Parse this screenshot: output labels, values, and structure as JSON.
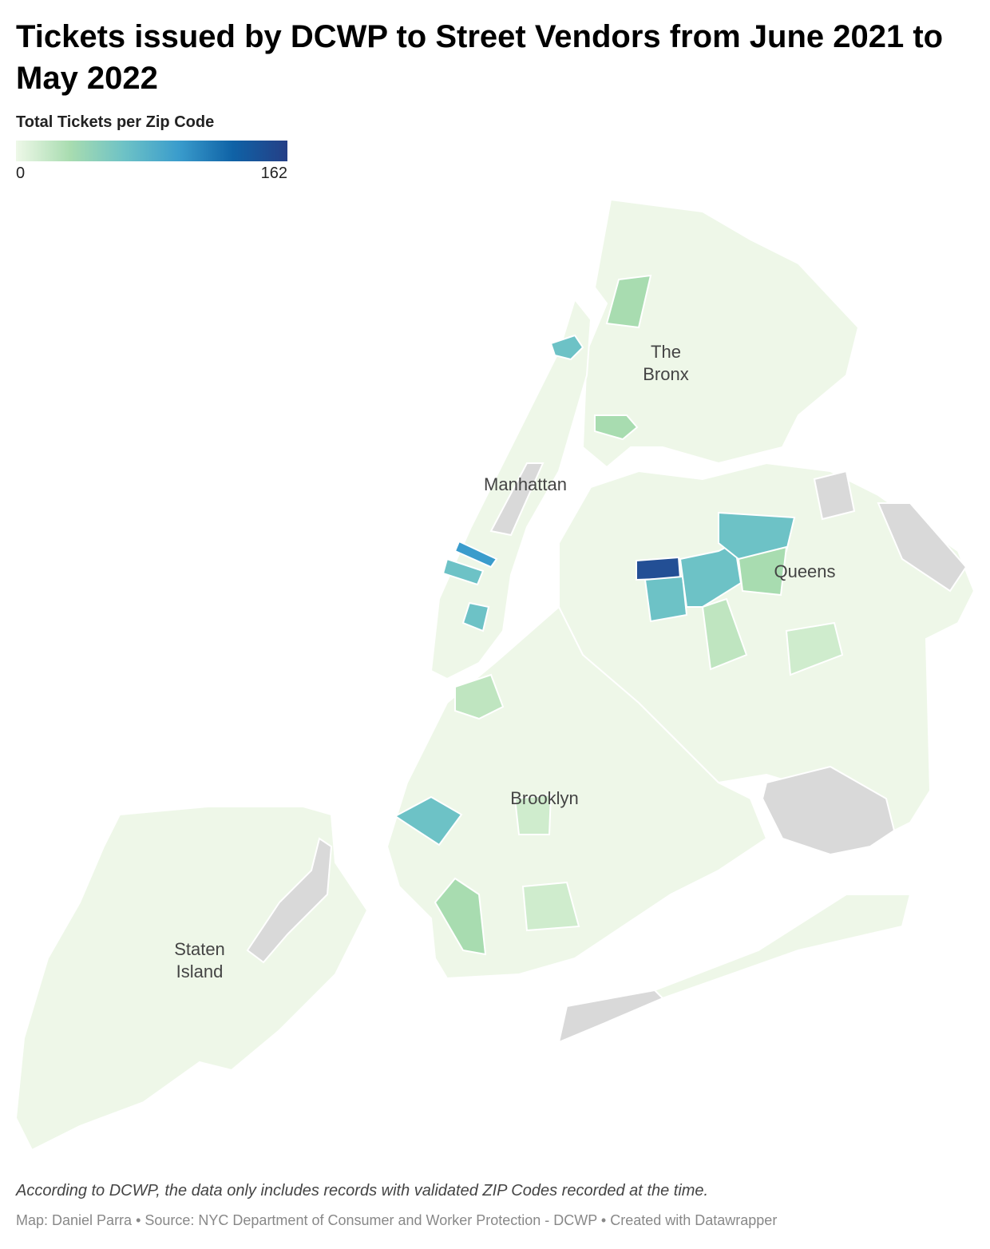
{
  "header": {
    "title": "Tickets issued by DCWP to Street Vendors from June 2021 to May 2022"
  },
  "legend": {
    "title": "Total Tickets per Zip Code",
    "min": 0,
    "max": 162
  },
  "labels": {
    "bronx": [
      "The",
      "Bronx"
    ],
    "manhattan": "Manhattan",
    "queens": "Queens",
    "brooklyn": "Brooklyn",
    "staten_island": [
      "Staten",
      "Island"
    ]
  },
  "footer": {
    "note": "According to DCWP, the data only includes records with validated ZIP Codes recorded at the time.",
    "credits": "Map: Daniel Parra • Source: NYC Department of Consumer and Worker Protection - DCWP • Created with Datawrapper"
  }
}
